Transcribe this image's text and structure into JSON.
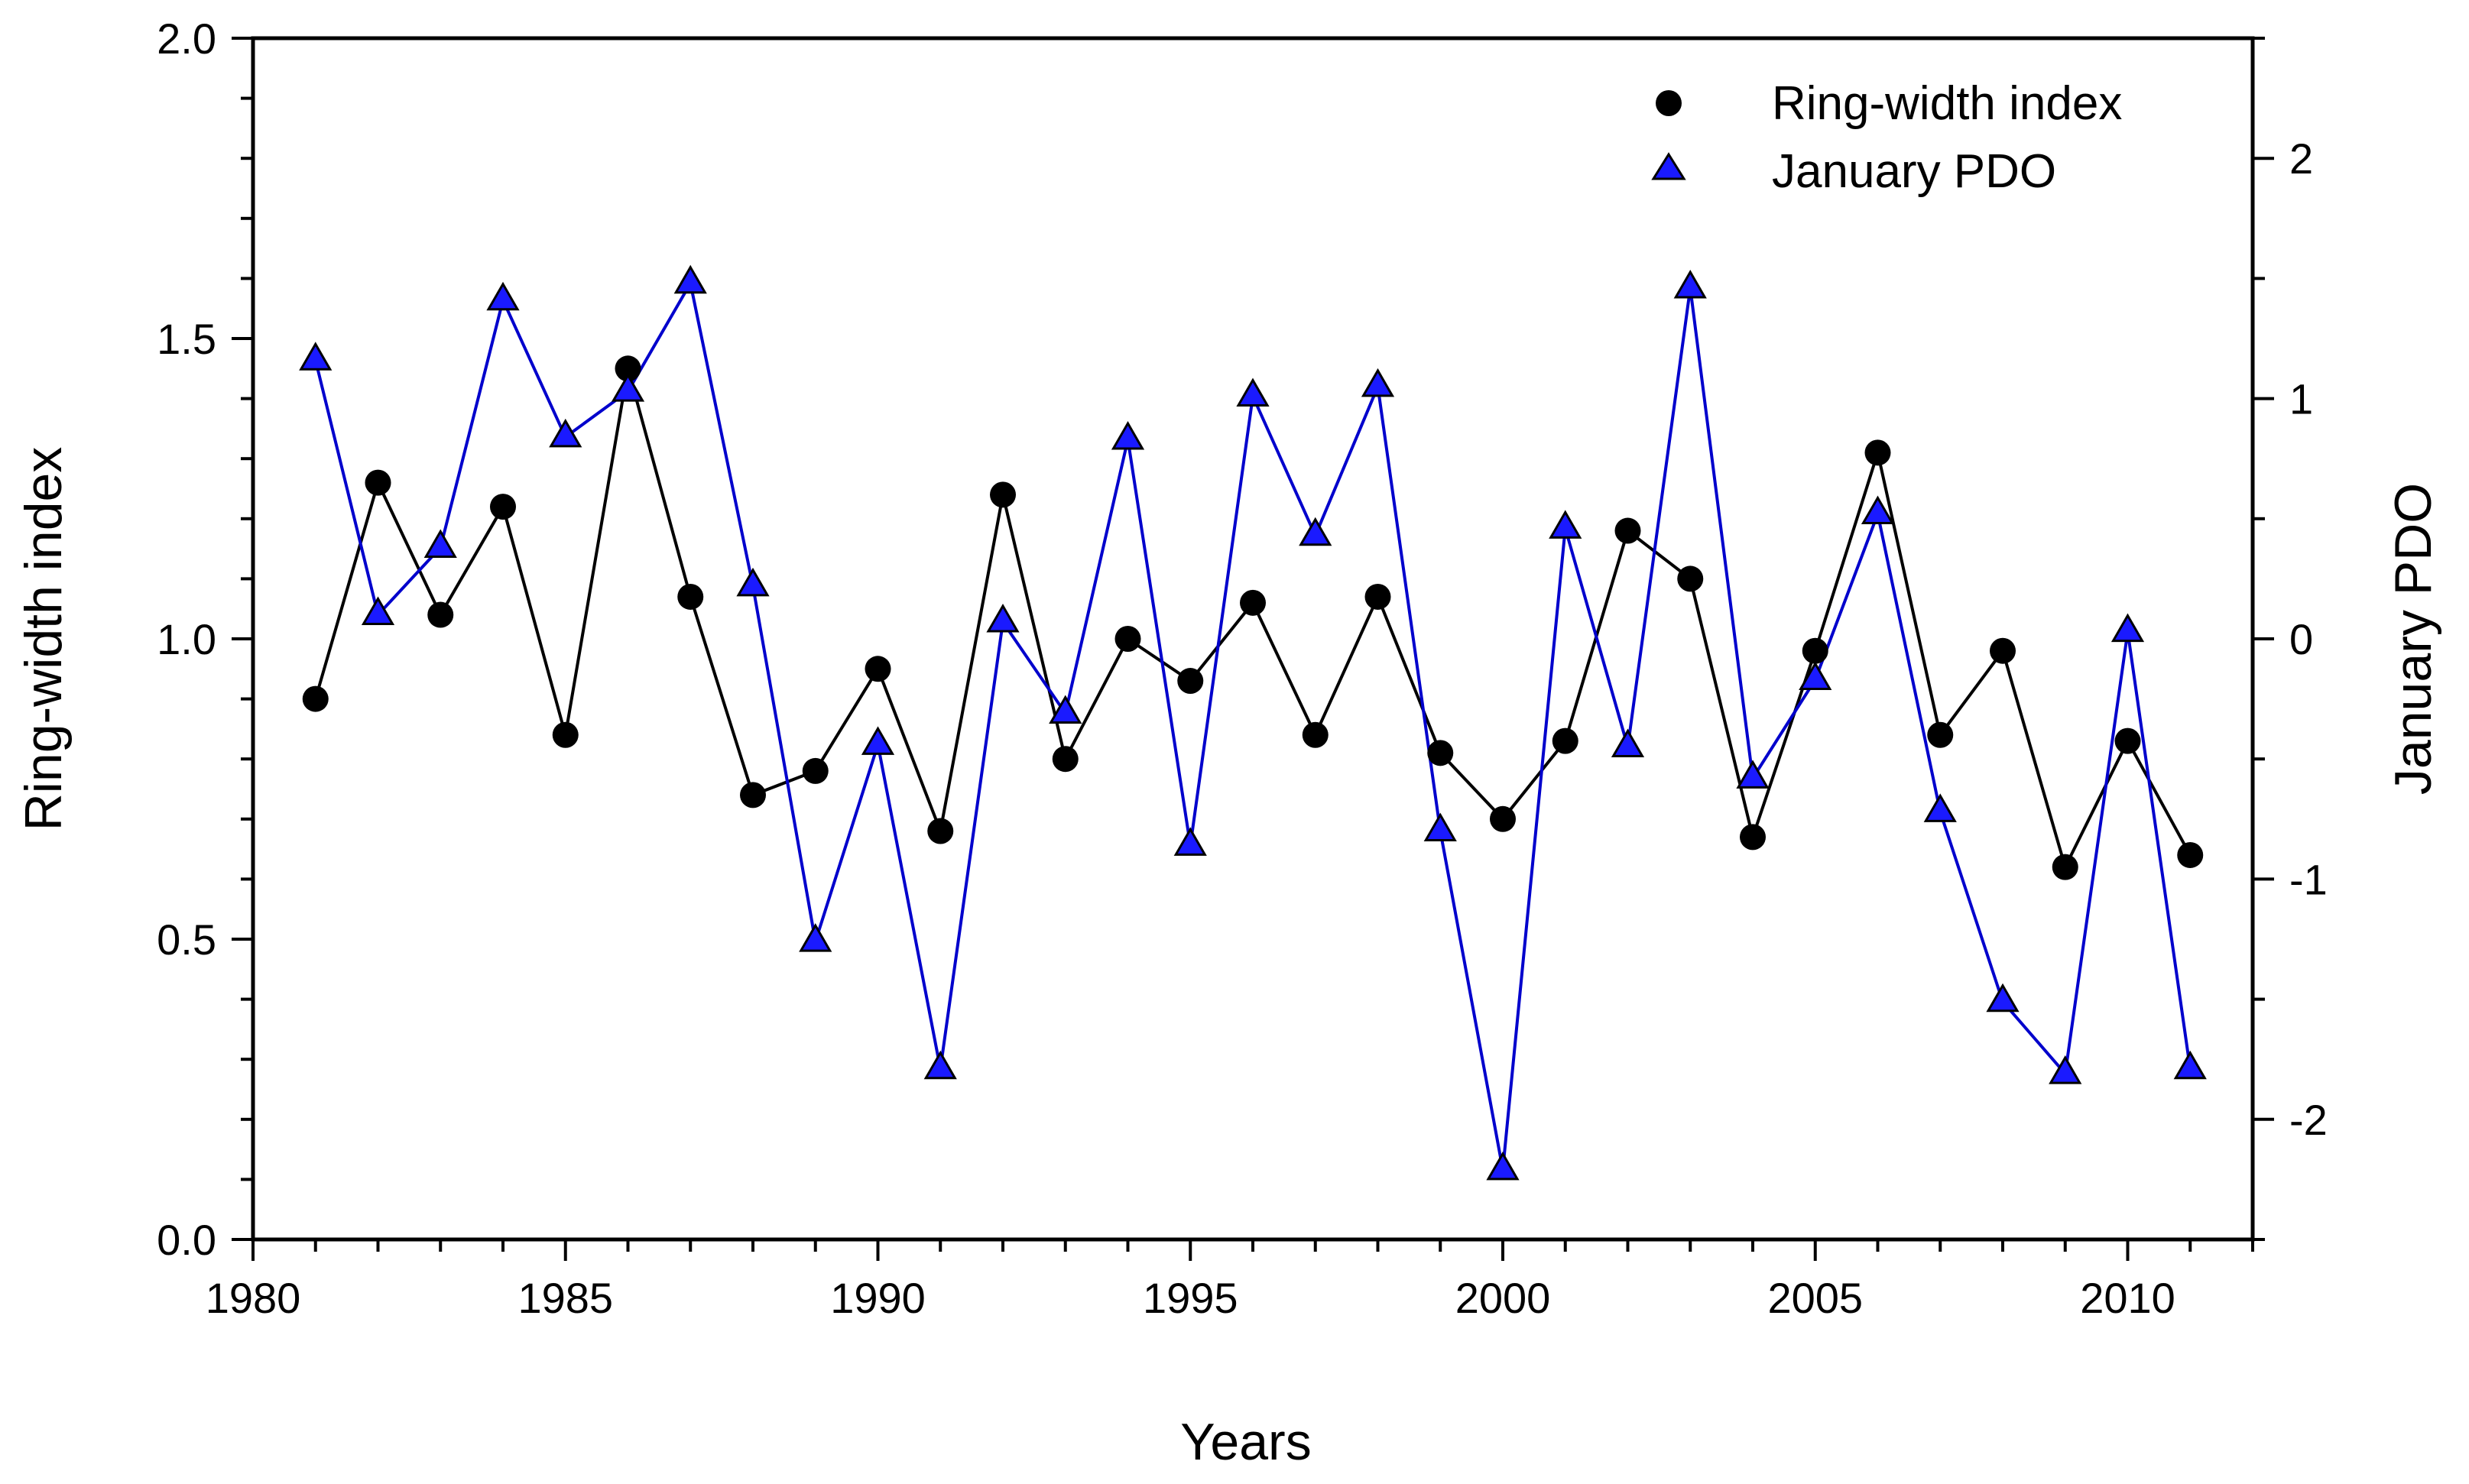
{
  "chart_data": {
    "type": "line",
    "title": "",
    "xlabel": "Years",
    "ylabel": "Ring-width index",
    "y2label": "January PDO",
    "xlim": [
      1980,
      2012
    ],
    "ylim": [
      0.0,
      2.0
    ],
    "y2lim": [
      -2.5,
      2.5
    ],
    "x_ticks": [
      1980,
      1985,
      1990,
      1995,
      2000,
      2005,
      2010
    ],
    "y_ticks": [
      "0.0",
      "0.5",
      "1.0",
      "1.5",
      "2.0"
    ],
    "y2_ticks": [
      "-2",
      "-1",
      "0",
      "1",
      "2"
    ],
    "legend_position": "top-right",
    "grid": false,
    "colors": {
      "ring": "#000000",
      "pdo": "#0000cc",
      "pdo_fill": "#1a1aff",
      "y2_title": "#1a1acc"
    },
    "x": [
      1981,
      1982,
      1983,
      1984,
      1985,
      1986,
      1987,
      1988,
      1989,
      1990,
      1991,
      1992,
      1993,
      1994,
      1995,
      1996,
      1997,
      1998,
      1999,
      2000,
      2001,
      2002,
      2003,
      2004,
      2005,
      2006,
      2007,
      2008,
      2009,
      2010,
      2011
    ],
    "series": [
      {
        "name": "Ring-width index",
        "axis": "left",
        "marker": "circle",
        "values": [
          0.9,
          1.26,
          1.04,
          1.22,
          0.84,
          1.45,
          1.07,
          0.74,
          0.78,
          0.95,
          0.68,
          1.24,
          0.8,
          1.0,
          0.93,
          1.06,
          0.84,
          1.07,
          0.81,
          0.7,
          0.83,
          1.18,
          1.1,
          0.67,
          0.98,
          1.31,
          0.84,
          0.98,
          0.62,
          0.83,
          0.64
        ]
      },
      {
        "name": "January PDO",
        "axis": "right",
        "marker": "triangle",
        "values": [
          1.16,
          0.1,
          0.38,
          1.41,
          0.84,
          1.03,
          1.48,
          0.22,
          -1.26,
          -0.44,
          -1.79,
          0.07,
          -0.31,
          0.83,
          -0.86,
          1.01,
          0.43,
          1.05,
          -0.8,
          -2.21,
          0.46,
          -0.45,
          1.46,
          -0.58,
          -0.17,
          0.52,
          -0.72,
          -1.51,
          -1.81,
          0.03,
          -1.79
        ]
      }
    ]
  }
}
